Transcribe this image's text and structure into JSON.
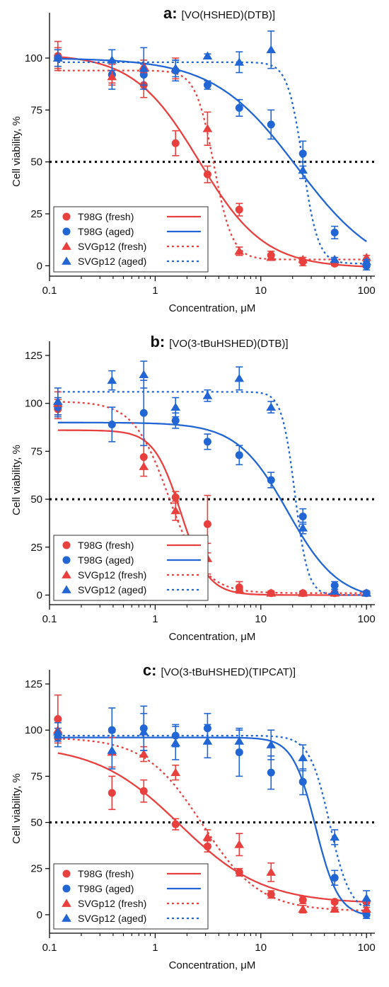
{
  "figure": {
    "panels": [
      {
        "letter": "a:",
        "compound": "[VO(HSHED)(DTB)]"
      },
      {
        "letter": "b:",
        "compound": "[VO(3-tBuHSHED)(DTB)]"
      },
      {
        "letter": "c:",
        "compound": "[VO(3-tBuHSHED)(TIPCAT)]"
      }
    ],
    "colors": {
      "red": "#e8403f",
      "blue": "#2166d4"
    }
  },
  "chart_data": [
    {
      "type": "scatter",
      "title": "a: [VO(HSHED)(DTB)]",
      "xlabel": "Concentration, μM",
      "ylabel": "Cell viability, %",
      "xscale": "log",
      "xlim": [
        0.1,
        120
      ],
      "ylim": [
        -5,
        115
      ],
      "xticks": [
        0.1,
        1,
        10,
        100
      ],
      "xtick_labels": [
        "0.1",
        "1",
        "10",
        "100"
      ],
      "yticks": [
        0,
        25,
        50,
        75,
        100
      ],
      "ytick_labels": [
        "0",
        "25",
        "50",
        "75",
        "100"
      ],
      "reference_line": 50,
      "legend_position": "bottom-left",
      "series": [
        {
          "name": "T98G (fresh)",
          "color": "#e8403f",
          "marker": "circle",
          "line": "solid",
          "x": [
            0.12,
            0.39,
            0.78,
            1.56,
            3.13,
            6.25,
            12.5,
            25,
            50,
            100
          ],
          "y": [
            101,
            92,
            87,
            59,
            44,
            27,
            5,
            2,
            1,
            0
          ],
          "err": [
            7,
            5,
            6,
            6,
            4,
            3,
            2,
            2,
            1,
            1
          ],
          "fit": {
            "top": 102,
            "bottom": -1,
            "ec50": 2.6,
            "hill": 1.4
          }
        },
        {
          "name": "T98G (aged)",
          "color": "#2166d4",
          "marker": "circle",
          "line": "solid",
          "x": [
            0.12,
            0.39,
            0.78,
            1.56,
            3.13,
            6.25,
            12.5,
            25,
            50,
            100
          ],
          "y": [
            100,
            92,
            92,
            94,
            87,
            76,
            68,
            54,
            16,
            0
          ],
          "err": [
            4,
            7,
            5,
            5,
            2,
            4,
            7,
            6,
            3,
            2
          ],
          "fit": {
            "top": 100,
            "bottom": -5,
            "ec50": 22,
            "hill": 1.1
          }
        },
        {
          "name": "SVGp12 (fresh)",
          "color": "#e8403f",
          "marker": "triangle",
          "line": "dotted",
          "x": [
            0.12,
            0.39,
            0.78,
            1.56,
            3.13,
            6.25,
            12.5,
            25,
            50,
            100
          ],
          "y": [
            100,
            91,
            96,
            95,
            66,
            7,
            4,
            3,
            3,
            4
          ],
          "err": [
            5,
            3,
            3,
            5,
            8,
            2,
            1,
            1,
            1,
            1
          ],
          "fit": {
            "top": 94,
            "bottom": 3,
            "ec50": 3.6,
            "hill": 5
          }
        },
        {
          "name": "SVGp12 (aged)",
          "color": "#2166d4",
          "marker": "triangle",
          "line": "dotted",
          "x": [
            0.12,
            0.39,
            0.78,
            1.56,
            3.13,
            6.25,
            12.5,
            25,
            50,
            100
          ],
          "y": [
            100,
            99,
            95,
            95,
            101,
            98,
            104,
            46,
            3,
            2
          ],
          "err": [
            4,
            5,
            10,
            4,
            1,
            5,
            9,
            4,
            1,
            1
          ],
          "fit": {
            "top": 98,
            "bottom": 1,
            "ec50": 25,
            "hill": 6
          }
        }
      ]
    },
    {
      "type": "scatter",
      "title": "b: [VO(3-tBuHSHED)(DTB)]",
      "xlabel": "Concentration, μM",
      "ylabel": "Cell viability, %",
      "xscale": "log",
      "xlim": [
        0.1,
        120
      ],
      "ylim": [
        -5,
        125
      ],
      "xticks": [
        0.1,
        1,
        10,
        100
      ],
      "xtick_labels": [
        "0.1",
        "1",
        "10",
        "100"
      ],
      "yticks": [
        0,
        25,
        50,
        75,
        100,
        125
      ],
      "ytick_labels": [
        "0",
        "25",
        "50",
        "75",
        "100",
        "125"
      ],
      "reference_line": 50,
      "legend_position": "bottom-left",
      "series": [
        {
          "name": "T98G (fresh)",
          "color": "#e8403f",
          "marker": "circle",
          "line": "solid",
          "x": [
            0.12,
            0.78,
            1.56,
            3.13,
            6.25,
            12.5,
            25,
            50,
            100
          ],
          "y": [
            97,
            72,
            51,
            37,
            4,
            1,
            1,
            1,
            1
          ],
          "err": [
            5,
            6,
            3,
            15,
            3,
            1,
            1,
            1,
            1
          ],
          "fit": {
            "top": 86,
            "bottom": 0,
            "ec50": 1.75,
            "hill": 3.4
          }
        },
        {
          "name": "T98G (aged)",
          "color": "#2166d4",
          "marker": "circle",
          "line": "solid",
          "x": [
            0.12,
            0.39,
            0.78,
            1.56,
            3.13,
            6.25,
            12.5,
            25,
            50,
            100
          ],
          "y": [
            98,
            89,
            95,
            91,
            80,
            73,
            60,
            41,
            5,
            1
          ],
          "err": [
            5,
            9,
            17,
            4,
            4,
            5,
            4,
            4,
            2,
            1
          ],
          "fit": {
            "top": 90,
            "bottom": -3,
            "ec50": 18,
            "hill": 1.8
          }
        },
        {
          "name": "SVGp12 (fresh)",
          "color": "#e8403f",
          "marker": "triangle",
          "line": "dotted",
          "x": [
            0.12,
            0.78,
            1.56,
            3.13,
            6.25,
            12.5,
            25,
            50,
            100
          ],
          "y": [
            100,
            67,
            44,
            19,
            3,
            1,
            1,
            1,
            1
          ],
          "err": [
            6,
            5,
            5,
            8,
            1,
            1,
            1,
            1,
            1
          ],
          "fit": {
            "top": 101,
            "bottom": 1,
            "ec50": 1.35,
            "hill": 2.6
          }
        },
        {
          "name": "SVGp12 (aged)",
          "color": "#2166d4",
          "marker": "triangle",
          "line": "dotted",
          "x": [
            0.12,
            0.39,
            0.78,
            1.56,
            3.13,
            6.25,
            12.5,
            25,
            50,
            100
          ],
          "y": [
            101,
            112,
            115,
            98,
            104,
            113,
            98,
            35,
            2,
            1
          ],
          "err": [
            7,
            5,
            7,
            5,
            3,
            6,
            3,
            3,
            1,
            1
          ],
          "fit": {
            "top": 106,
            "bottom": 0,
            "ec50": 21,
            "hill": 7
          }
        }
      ]
    },
    {
      "type": "scatter",
      "title": "c: [VO(3-tBuHSHED)(TIPCAT)]",
      "xlabel": "Concentration, μM",
      "ylabel": "Cell viability, %",
      "xscale": "log",
      "xlim": [
        0.1,
        120
      ],
      "ylim": [
        -10,
        125
      ],
      "xticks": [
        0.1,
        1,
        10,
        100
      ],
      "xtick_labels": [
        "0.1",
        "1",
        "10",
        "100"
      ],
      "yticks": [
        0,
        25,
        50,
        75,
        100,
        125
      ],
      "ytick_labels": [
        "0",
        "25",
        "50",
        "75",
        "100",
        "125"
      ],
      "reference_line": 50,
      "legend_position": "bottom-left",
      "series": [
        {
          "name": "T98G (fresh)",
          "color": "#e8403f",
          "marker": "circle",
          "line": "solid",
          "x": [
            0.12,
            0.39,
            0.78,
            1.56,
            3.13,
            6.25,
            12.5,
            25,
            50,
            100
          ],
          "y": [
            106,
            66,
            67,
            49,
            37,
            23,
            11,
            8,
            7,
            7
          ],
          "err": [
            13,
            9,
            6,
            3,
            3,
            2,
            2,
            2,
            1,
            1
          ],
          "fit": {
            "top": 92,
            "bottom": 6,
            "ec50": 1.7,
            "hill": 1.1
          }
        },
        {
          "name": "T98G (aged)",
          "color": "#2166d4",
          "marker": "circle",
          "line": "solid",
          "x": [
            0.12,
            0.39,
            0.78,
            1.56,
            3.13,
            6.25,
            12.5,
            25,
            50,
            100
          ],
          "y": [
            96,
            100,
            101,
            97,
            101,
            88,
            77,
            72,
            20,
            0
          ],
          "err": [
            5,
            12,
            12,
            6,
            8,
            13,
            9,
            7,
            4,
            2
          ],
          "fit": {
            "top": 96,
            "bottom": -1,
            "ec50": 33,
            "hill": 4
          }
        },
        {
          "name": "SVGp12 (fresh)",
          "color": "#e8403f",
          "marker": "triangle",
          "line": "dotted",
          "x": [
            0.12,
            0.39,
            0.78,
            1.56,
            3.13,
            6.25,
            12.5,
            25,
            50,
            100
          ],
          "y": [
            100,
            88,
            87,
            77,
            42,
            38,
            23,
            3,
            3,
            3
          ],
          "err": [
            5,
            8,
            4,
            4,
            4,
            6,
            5,
            2,
            1,
            1
          ],
          "fit": {
            "top": 96,
            "bottom": 2,
            "ec50": 2.8,
            "hill": 1.6
          }
        },
        {
          "name": "SVGp12 (aged)",
          "color": "#2166d4",
          "marker": "triangle",
          "line": "dotted",
          "x": [
            0.12,
            0.39,
            0.78,
            1.56,
            3.13,
            6.25,
            12.5,
            25,
            50,
            100
          ],
          "y": [
            99,
            89,
            99,
            93,
            94,
            94,
            92,
            85,
            42,
            9
          ],
          "err": [
            5,
            10,
            10,
            9,
            9,
            6,
            8,
            7,
            4,
            4
          ],
          "fit": {
            "top": 97,
            "bottom": 1,
            "ec50": 45,
            "hill": 4.5
          }
        }
      ]
    }
  ]
}
